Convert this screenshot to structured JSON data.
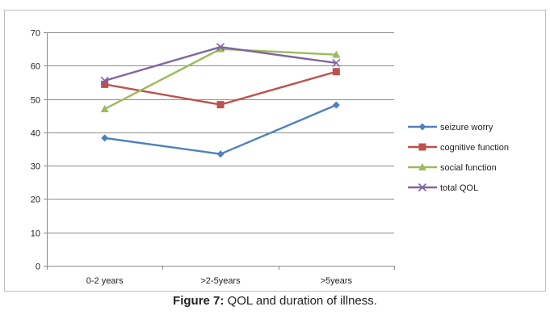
{
  "caption": {
    "label": "Figure 7:",
    "text": " QOL and duration of illness."
  },
  "chart_data": {
    "type": "line",
    "categories": [
      "0-2 years",
      ">2-5years",
      ">5years"
    ],
    "series": [
      {
        "name": "seizure worry",
        "values": [
          38.3,
          33.5,
          48.2
        ],
        "color": "#4f81bd",
        "marker": "diamond"
      },
      {
        "name": "cognitive function",
        "values": [
          54.4,
          48.3,
          58.2
        ],
        "color": "#c0504d",
        "marker": "square"
      },
      {
        "name": "social function",
        "values": [
          47.0,
          65.0,
          63.3
        ],
        "color": "#9bbb59",
        "marker": "triangle"
      },
      {
        "name": "total QOL",
        "values": [
          55.5,
          65.6,
          60.8
        ],
        "color": "#8064a2",
        "marker": "x"
      }
    ],
    "ylim": [
      0,
      70
    ],
    "yticks": [
      0,
      10,
      20,
      30,
      40,
      50,
      60,
      70
    ],
    "grid": true,
    "legend": "right"
  }
}
